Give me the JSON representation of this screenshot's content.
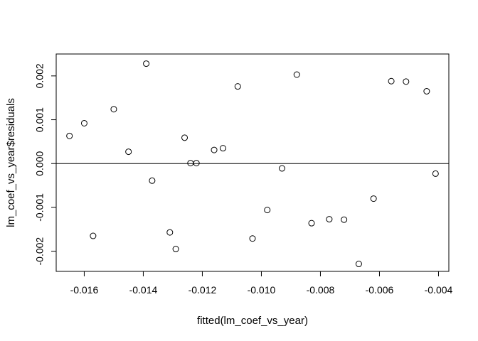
{
  "chart_data": {
    "type": "scatter",
    "title": "",
    "xlabel": "fitted(lm_coef_vs_year)",
    "ylabel": "lm_coef_vs_year$residuals",
    "xlim": [
      -0.01695,
      -0.00365
    ],
    "ylim": [
      -0.00246,
      0.0025
    ],
    "x_ticks": [
      {
        "value": -0.016,
        "label": "-0.016"
      },
      {
        "value": -0.014,
        "label": "-0.014"
      },
      {
        "value": -0.012,
        "label": "-0.012"
      },
      {
        "value": -0.01,
        "label": "-0.010"
      },
      {
        "value": -0.008,
        "label": "-0.008"
      },
      {
        "value": -0.006,
        "label": "-0.006"
      },
      {
        "value": -0.004,
        "label": "-0.004"
      }
    ],
    "y_ticks": [
      {
        "value": -0.002,
        "label": "-0.002"
      },
      {
        "value": -0.001,
        "label": "-0.001"
      },
      {
        "value": 0.0,
        "label": "0.000"
      },
      {
        "value": 0.001,
        "label": "0.001"
      },
      {
        "value": 0.002,
        "label": "0.002"
      }
    ],
    "reference_line_y": 0,
    "points": [
      {
        "x": -0.0165,
        "y": 0.00063
      },
      {
        "x": -0.016,
        "y": 0.00092
      },
      {
        "x": -0.0157,
        "y": -0.00165
      },
      {
        "x": -0.015,
        "y": 0.00124
      },
      {
        "x": -0.0145,
        "y": 0.00027
      },
      {
        "x": -0.0139,
        "y": 0.00228
      },
      {
        "x": -0.0137,
        "y": -0.00039
      },
      {
        "x": -0.0131,
        "y": -0.00157
      },
      {
        "x": -0.0129,
        "y": -0.00195
      },
      {
        "x": -0.0126,
        "y": 0.00059
      },
      {
        "x": -0.0124,
        "y": 1e-05
      },
      {
        "x": -0.0122,
        "y": 1e-05
      },
      {
        "x": -0.0116,
        "y": 0.00031
      },
      {
        "x": -0.0113,
        "y": 0.00035
      },
      {
        "x": -0.0108,
        "y": 0.00176
      },
      {
        "x": -0.0103,
        "y": -0.00171
      },
      {
        "x": -0.0098,
        "y": -0.00106
      },
      {
        "x": -0.0093,
        "y": -0.00011
      },
      {
        "x": -0.0088,
        "y": 0.00203
      },
      {
        "x": -0.0083,
        "y": -0.00136
      },
      {
        "x": -0.0077,
        "y": -0.00127
      },
      {
        "x": -0.0072,
        "y": -0.00128
      },
      {
        "x": -0.0067,
        "y": -0.00229
      },
      {
        "x": -0.0062,
        "y": -0.0008
      },
      {
        "x": -0.0056,
        "y": 0.00188
      },
      {
        "x": -0.0051,
        "y": 0.00187
      },
      {
        "x": -0.0044,
        "y": 0.00165
      },
      {
        "x": -0.0041,
        "y": -0.00023
      }
    ],
    "grid": false,
    "legend": "none",
    "colors": {
      "points": "#000000",
      "axes": "#000000",
      "background": "#ffffff"
    }
  }
}
